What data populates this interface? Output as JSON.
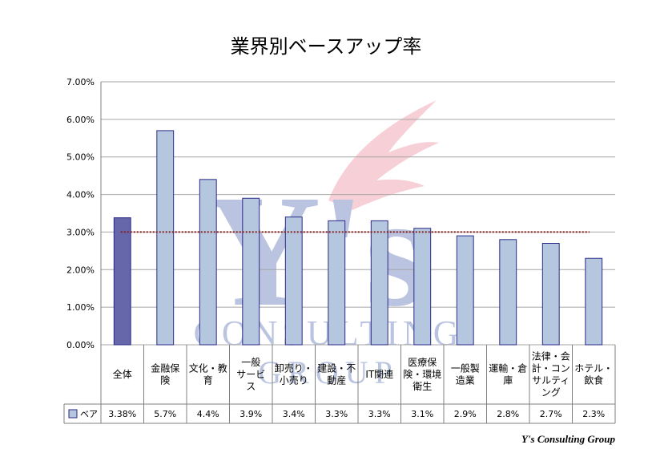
{
  "chart_data": {
    "type": "bar",
    "title": "業界別ベースアップ率",
    "categories": [
      [
        "全体"
      ],
      [
        "金融保",
        "険"
      ],
      [
        "文化・教",
        "育"
      ],
      [
        "一般",
        "サービ",
        "ス"
      ],
      [
        "卸売り・",
        "小売り"
      ],
      [
        "建設・不",
        "動産"
      ],
      [
        "IT関連"
      ],
      [
        "医療保",
        "険・環境",
        "衛生"
      ],
      [
        "一般製",
        "造業"
      ],
      [
        "運輸・倉",
        "庫"
      ],
      [
        "法律・会",
        "計・コン",
        "サルティ",
        "ング"
      ],
      [
        "ホテル・",
        "飲食"
      ]
    ],
    "series": [
      {
        "name": "ベア",
        "values": [
          3.38,
          5.7,
          4.4,
          3.9,
          3.4,
          3.3,
          3.3,
          3.1,
          2.9,
          2.8,
          2.7,
          2.3
        ],
        "labels": [
          "3.38%",
          "5.7%",
          "4.4%",
          "3.9%",
          "3.4%",
          "3.3%",
          "3.3%",
          "3.1%",
          "2.9%",
          "2.8%",
          "2.7%",
          "2.3%"
        ]
      }
    ],
    "ylim": [
      0,
      7
    ],
    "yticks": [
      "0.00%",
      "1.00%",
      "2.00%",
      "3.00%",
      "4.00%",
      "5.00%",
      "6.00%",
      "7.00%"
    ],
    "reference_line": 3.0,
    "grid": true,
    "legend": "data-table",
    "colors": {
      "highlight_bar": "#6666aa",
      "bar": "#b4c7df",
      "bar_border": "#2a2a88",
      "reference_line": "#8b1a1a",
      "grid": "#a6a6a6"
    }
  },
  "watermark": {
    "monogram": "Y's",
    "line1": "CONSULTING",
    "line2": "GROUP"
  },
  "footer": {
    "credit": "Y's Consulting Group"
  }
}
